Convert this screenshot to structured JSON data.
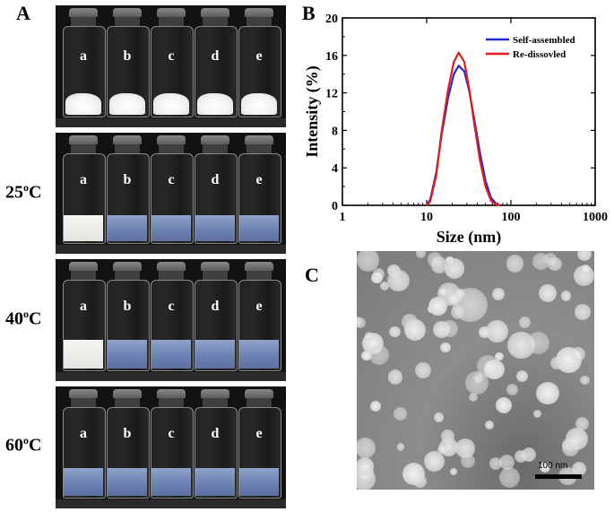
{
  "panels": {
    "a_letter": "A",
    "b_letter": "B",
    "c_letter": "C"
  },
  "vial_labels": [
    "a",
    "b",
    "c",
    "d",
    "e"
  ],
  "temperature_rows": [
    {
      "value": "25",
      "sup": "o",
      "unit": "C"
    },
    {
      "value": "40",
      "sup": "o",
      "unit": "C"
    },
    {
      "value": "60",
      "sup": "o",
      "unit": "C"
    }
  ],
  "chart_data": {
    "type": "line",
    "xlabel": "Size (nm)",
    "ylabel": "Intensity (%)",
    "xscale": "log",
    "xlim": [
      1,
      1000
    ],
    "ylim": [
      0,
      20
    ],
    "xticks": [
      "1",
      "10",
      "100",
      "1000"
    ],
    "yticks": [
      "0",
      "4",
      "8",
      "12",
      "16",
      "20"
    ],
    "legend": "top-right",
    "grid": false,
    "series": [
      {
        "name": "Self-assembled",
        "color": "#1f2bd6",
        "x": [
          10,
          11,
          13,
          15,
          18,
          21,
          24,
          28,
          32,
          37,
          43,
          50,
          58,
          68,
          75
        ],
        "y": [
          0,
          0.6,
          3.5,
          7.5,
          11.5,
          14.0,
          14.9,
          14.3,
          12.2,
          9.0,
          5.6,
          2.6,
          0.8,
          0.1,
          0
        ]
      },
      {
        "name": "Re-dissovled",
        "color": "#e11b1b",
        "x": [
          10,
          11,
          13,
          15,
          18,
          21,
          24,
          28,
          32,
          37,
          43,
          50,
          58,
          68,
          75
        ],
        "y": [
          0,
          0.4,
          3.2,
          7.8,
          12.4,
          15.3,
          16.3,
          15.3,
          12.4,
          8.5,
          4.8,
          2.0,
          0.5,
          0.05,
          0
        ]
      }
    ]
  },
  "tem": {
    "scalebar_label": "100 nm"
  }
}
